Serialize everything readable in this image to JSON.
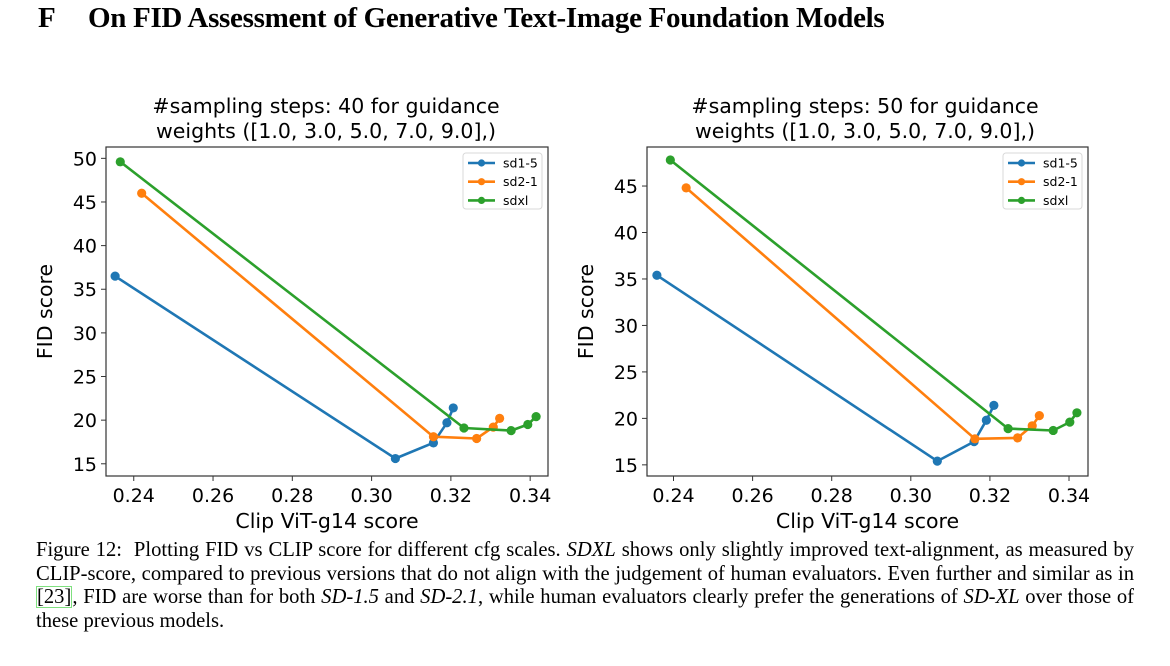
{
  "section": {
    "number": "F",
    "title": "On FID Assessment of Generative Text-Image Foundation Models"
  },
  "colors": {
    "sd1-5": "#1f77b4",
    "sd2-1": "#ff7f0e",
    "sdxl": "#2ca02c"
  },
  "chart_data": [
    {
      "type": "line",
      "title_lines": [
        "#sampling steps: 40 for guidance",
        "weights ([1.0, 3.0, 5.0, 7.0, 9.0],)"
      ],
      "xlabel": "Clip ViT-g14 score",
      "ylabel": "FID score",
      "xlim": [
        0.233,
        0.3445
      ],
      "ylim": [
        13.6,
        51.3
      ],
      "xticks": [
        0.24,
        0.26,
        0.28,
        0.3,
        0.32,
        0.34
      ],
      "xtick_labels": [
        "0.24",
        "0.26",
        "0.28",
        "0.30",
        "0.32",
        "0.34"
      ],
      "yticks": [
        15,
        20,
        25,
        30,
        35,
        40,
        45,
        50
      ],
      "ytick_labels": [
        "15",
        "20",
        "25",
        "30",
        "35",
        "40",
        "45",
        "50"
      ],
      "grid": false,
      "legend_position": "top-right",
      "guidance_weights": [
        1.0,
        3.0,
        5.0,
        7.0,
        9.0
      ],
      "series": [
        {
          "name": "sd1-5",
          "x": [
            0.2353,
            0.306,
            0.3156,
            0.319,
            0.3206
          ],
          "y": [
            36.5,
            15.6,
            17.4,
            19.7,
            21.4
          ]
        },
        {
          "name": "sd2-1",
          "x": [
            0.242,
            0.3156,
            0.3265,
            0.3307,
            0.3323
          ],
          "y": [
            46.0,
            18.1,
            17.9,
            19.2,
            20.2
          ]
        },
        {
          "name": "sdxl",
          "x": [
            0.2366,
            0.3233,
            0.3352,
            0.3394,
            0.3415
          ],
          "y": [
            49.6,
            19.1,
            18.8,
            19.5,
            20.4
          ]
        }
      ]
    },
    {
      "type": "line",
      "title_lines": [
        "#sampling steps: 50 for guidance",
        "weights ([1.0, 3.0, 5.0, 7.0, 9.0],)"
      ],
      "xlabel": "Clip ViT-g14 score",
      "ylabel": "FID score",
      "xlim": [
        0.2333,
        0.3448
      ],
      "ylim": [
        13.8,
        49.2
      ],
      "xticks": [
        0.24,
        0.26,
        0.28,
        0.3,
        0.32,
        0.34
      ],
      "xtick_labels": [
        "0.24",
        "0.26",
        "0.28",
        "0.30",
        "0.32",
        "0.34"
      ],
      "yticks": [
        15,
        20,
        25,
        30,
        35,
        40,
        45
      ],
      "ytick_labels": [
        "15",
        "20",
        "25",
        "30",
        "35",
        "40",
        "45"
      ],
      "grid": false,
      "legend_position": "top-right",
      "guidance_weights": [
        1.0,
        3.0,
        5.0,
        7.0,
        9.0
      ],
      "series": [
        {
          "name": "sd1-5",
          "x": [
            0.2358,
            0.3067,
            0.316,
            0.3191,
            0.321
          ],
          "y": [
            35.4,
            15.4,
            17.5,
            19.8,
            21.4
          ]
        },
        {
          "name": "sd2-1",
          "x": [
            0.2432,
            0.3162,
            0.327,
            0.3307,
            0.3325
          ],
          "y": [
            44.8,
            17.8,
            17.9,
            19.2,
            20.3
          ]
        },
        {
          "name": "sdxl",
          "x": [
            0.2392,
            0.3246,
            0.336,
            0.3402,
            0.342
          ],
          "y": [
            47.8,
            18.9,
            18.7,
            19.6,
            20.6
          ]
        }
      ]
    }
  ],
  "caption": {
    "label": "Figure 12:",
    "parts": [
      {
        "t": "Plotting FID vs CLIP score for different cfg scales. "
      },
      {
        "t": "SDXL",
        "i": true
      },
      {
        "t": " shows only slightly improved text-alignment, as measured by CLIP-score, compared to previous versions that do not align with the judgement of human evaluators. Even further and similar as in "
      },
      {
        "t": "[23]",
        "cite": true
      },
      {
        "t": ", FID are worse than for both "
      },
      {
        "t": "SD-1.5",
        "i": true
      },
      {
        "t": " and "
      },
      {
        "t": "SD-2.1",
        "i": true
      },
      {
        "t": ", while human evaluators clearly prefer the generations of "
      },
      {
        "t": "SD-XL",
        "i": true
      },
      {
        "t": " over those of these previous models."
      }
    ]
  }
}
